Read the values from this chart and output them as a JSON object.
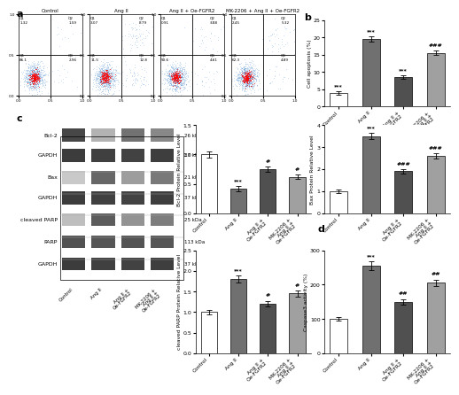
{
  "categories": [
    "Control",
    "Ang II",
    "Ang II +\nOe-FGFR2",
    "MK-2206 +\nAng II +\nOe-FGFR2"
  ],
  "bar_colors": [
    "#ffffff",
    "#707070",
    "#505050",
    "#a0a0a0"
  ],
  "bar_edgecolor": "#000000",
  "panel_b": {
    "ylabel": "Cell apoptosis (%)",
    "ylim": [
      0,
      25
    ],
    "yticks": [
      0,
      5,
      10,
      15,
      20,
      25
    ],
    "values": [
      4.0,
      19.5,
      8.5,
      15.5
    ],
    "errors": [
      0.5,
      0.8,
      0.6,
      0.7
    ],
    "sigs": [
      "***",
      "***",
      "***",
      "###"
    ]
  },
  "panel_bcl2": {
    "ylabel": "Bcl-2 Protein Relative Level",
    "ylim": [
      0,
      1.5
    ],
    "yticks": [
      0.0,
      0.5,
      1.0,
      1.5
    ],
    "values": [
      1.0,
      0.42,
      0.75,
      0.62
    ],
    "errors": [
      0.05,
      0.04,
      0.04,
      0.04
    ],
    "sigs": [
      "",
      "***",
      "#",
      "#"
    ]
  },
  "panel_bax": {
    "ylabel": "Bax Protein Relative Level",
    "ylim": [
      0,
      4
    ],
    "yticks": [
      0,
      1,
      2,
      3,
      4
    ],
    "values": [
      1.0,
      3.5,
      1.9,
      2.6
    ],
    "errors": [
      0.08,
      0.15,
      0.1,
      0.12
    ],
    "sigs": [
      "",
      "***",
      "###",
      "###"
    ]
  },
  "panel_parp": {
    "ylabel": "cleaved PARP Protein Relative Level",
    "ylim": [
      0,
      2.5
    ],
    "yticks": [
      0.0,
      0.5,
      1.0,
      1.5,
      2.0,
      2.5
    ],
    "values": [
      1.0,
      1.8,
      1.2,
      1.45
    ],
    "errors": [
      0.06,
      0.08,
      0.07,
      0.07
    ],
    "sigs": [
      "",
      "***",
      "#",
      "#"
    ]
  },
  "panel_d": {
    "ylabel": "Caspase3 activity (%)",
    "ylim": [
      0,
      300
    ],
    "yticks": [
      0,
      100,
      200,
      300
    ],
    "values": [
      100,
      255,
      150,
      205
    ],
    "errors": [
      6,
      12,
      8,
      10
    ],
    "sigs": [
      "",
      "***",
      "##",
      "##"
    ]
  },
  "blot_labels": [
    "Bcl-2",
    "GAPDH",
    "Bax",
    "GAPDH",
    "cleaved PARP",
    "PARP",
    "GAPDH"
  ],
  "kda_labels": [
    "26 kDa",
    "37 kDa",
    "21 kDa",
    "37 kDa",
    "25 kDa",
    "113 kDa",
    "37 kDa"
  ],
  "fc_titles": [
    "Control",
    "Ang II",
    "Ang II + Oe-FGFR2",
    "MK-2206 + Ang II + Oe-FGFR2"
  ],
  "fc_q2_vals": [
    "1.32",
    "3.07",
    "0.91",
    "2.45"
  ],
  "fc_q1_vals": [
    "1.59",
    "8.79",
    "3.88",
    "5.32"
  ],
  "fc_q4_vals": [
    "86.1",
    "11.5",
    "90.6",
    "62.3"
  ],
  "fc_q3_vals": [
    "2.96",
    "12.8",
    "4.61",
    "4.89"
  ]
}
